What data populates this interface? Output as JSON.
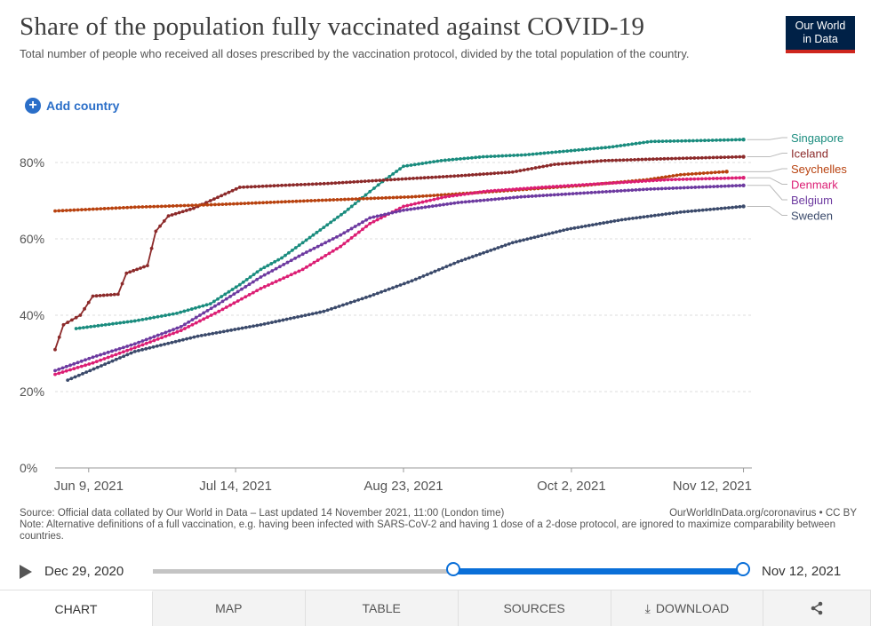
{
  "header": {
    "title": "Share of the population fully vaccinated against COVID-19",
    "subtitle": "Total number of people who received all doses prescribed by the vaccination protocol, divided by the total population of the country.",
    "logo_line1": "Our World",
    "logo_line2": "in Data",
    "add_country": "Add country"
  },
  "footer": {
    "source": "Source: Official data collated by Our World in Data – Last updated 14 November 2021, 11:00 (London time)",
    "source_link": "OurWorldInData.org/coronavirus • CC BY",
    "note": "Note: Alternative definitions of a full vaccination, e.g. having been infected with SARS-CoV-2 and having 1 dose of a 2-dose protocol, are ignored to maximize comparability between countries."
  },
  "timeline": {
    "start_label": "Dec 29, 2020",
    "end_label": "Nov 12, 2021"
  },
  "tabs": [
    "CHART",
    "MAP",
    "TABLE",
    "SOURCES",
    "DOWNLOAD"
  ],
  "colors": {
    "Singapore": "#1a8c7e",
    "Iceland": "#8c2a2a",
    "Seychelles": "#b8420f",
    "Denmark": "#dc1e74",
    "Belgium": "#6d3aa0",
    "Sweden": "#3b4a6b"
  },
  "chart_data": {
    "type": "line",
    "title": "Share of the population fully vaccinated against COVID-19",
    "ylim": [
      0,
      90
    ],
    "yticks": [
      "0%",
      "20%",
      "40%",
      "60%",
      "80%"
    ],
    "ytick_values": [
      0,
      20,
      40,
      60,
      80
    ],
    "xlim": [
      "2021-06-01",
      "2021-11-14"
    ],
    "xticks": [
      "Jun 9, 2021",
      "Jul 14, 2021",
      "Aug 23, 2021",
      "Oct 2, 2021",
      "Nov 12, 2021"
    ],
    "xtick_dates": [
      "2021-06-09",
      "2021-07-14",
      "2021-08-23",
      "2021-10-02",
      "2021-11-12"
    ],
    "grid": "horizontal dashed",
    "legend": "right, labels at line ends",
    "series": [
      {
        "name": "Singapore",
        "points": [
          [
            "2021-06-06",
            36.5
          ],
          [
            "2021-06-20",
            38.5
          ],
          [
            "2021-06-30",
            40.5
          ],
          [
            "2021-07-08",
            43
          ],
          [
            "2021-07-15",
            48
          ],
          [
            "2021-07-20",
            52
          ],
          [
            "2021-07-25",
            55
          ],
          [
            "2021-07-30",
            59
          ],
          [
            "2021-08-04",
            63
          ],
          [
            "2021-08-09",
            67
          ],
          [
            "2021-08-14",
            71.5
          ],
          [
            "2021-08-18",
            75
          ],
          [
            "2021-08-23",
            79
          ],
          [
            "2021-09-01",
            80.5
          ],
          [
            "2021-09-11",
            81.5
          ],
          [
            "2021-09-21",
            82
          ],
          [
            "2021-10-01",
            83
          ],
          [
            "2021-10-11",
            84
          ],
          [
            "2021-10-21",
            85.5
          ],
          [
            "2021-10-31",
            85.7
          ],
          [
            "2021-11-12",
            86
          ]
        ]
      },
      {
        "name": "Iceland",
        "points": [
          [
            "2021-06-01",
            31
          ],
          [
            "2021-06-03",
            37.5
          ],
          [
            "2021-06-07",
            40
          ],
          [
            "2021-06-10",
            45
          ],
          [
            "2021-06-16",
            45.5
          ],
          [
            "2021-06-18",
            51
          ],
          [
            "2021-06-23",
            53
          ],
          [
            "2021-06-25",
            62
          ],
          [
            "2021-06-28",
            66
          ],
          [
            "2021-07-04",
            68
          ],
          [
            "2021-07-08",
            70
          ],
          [
            "2021-07-15",
            73.5
          ],
          [
            "2021-07-25",
            74
          ],
          [
            "2021-08-05",
            74.5
          ],
          [
            "2021-08-20",
            75.5
          ],
          [
            "2021-09-05",
            76.5
          ],
          [
            "2021-09-18",
            77.5
          ],
          [
            "2021-09-28",
            79.5
          ],
          [
            "2021-10-10",
            80.5
          ],
          [
            "2021-10-25",
            81
          ],
          [
            "2021-11-12",
            81.5
          ]
        ]
      },
      {
        "name": "Seychelles",
        "points": [
          [
            "2021-06-01",
            67.3
          ],
          [
            "2021-06-20",
            68.3
          ],
          [
            "2021-07-10",
            69
          ],
          [
            "2021-08-01",
            70
          ],
          [
            "2021-08-25",
            71
          ],
          [
            "2021-09-15",
            72.5
          ],
          [
            "2021-10-05",
            74
          ],
          [
            "2021-10-20",
            75.5
          ],
          [
            "2021-10-28",
            76.8
          ],
          [
            "2021-11-08",
            77.6
          ]
        ]
      },
      {
        "name": "Denmark",
        "points": [
          [
            "2021-06-01",
            24.5
          ],
          [
            "2021-06-10",
            27.5
          ],
          [
            "2021-06-20",
            31.5
          ],
          [
            "2021-07-01",
            36
          ],
          [
            "2021-07-10",
            41
          ],
          [
            "2021-07-20",
            47
          ],
          [
            "2021-07-30",
            52
          ],
          [
            "2021-08-08",
            58
          ],
          [
            "2021-08-15",
            64
          ],
          [
            "2021-08-23",
            68.5
          ],
          [
            "2021-09-02",
            71
          ],
          [
            "2021-09-12",
            72.5
          ],
          [
            "2021-09-25",
            73.5
          ],
          [
            "2021-10-10",
            74.5
          ],
          [
            "2021-10-25",
            75.5
          ],
          [
            "2021-11-12",
            76
          ]
        ]
      },
      {
        "name": "Belgium",
        "points": [
          [
            "2021-06-01",
            25.5
          ],
          [
            "2021-06-10",
            29
          ],
          [
            "2021-06-20",
            32.5
          ],
          [
            "2021-07-01",
            37
          ],
          [
            "2021-07-10",
            43
          ],
          [
            "2021-07-20",
            50
          ],
          [
            "2021-07-30",
            56
          ],
          [
            "2021-08-08",
            61
          ],
          [
            "2021-08-15",
            65.5
          ],
          [
            "2021-08-23",
            67.5
          ],
          [
            "2021-09-05",
            69.5
          ],
          [
            "2021-09-20",
            71
          ],
          [
            "2021-10-05",
            72
          ],
          [
            "2021-10-20",
            73
          ],
          [
            "2021-11-12",
            74
          ]
        ]
      },
      {
        "name": "Sweden",
        "points": [
          [
            "2021-06-04",
            23
          ],
          [
            "2021-06-20",
            30.5
          ],
          [
            "2021-07-05",
            34.5
          ],
          [
            "2021-07-20",
            37.5
          ],
          [
            "2021-08-04",
            41
          ],
          [
            "2021-08-15",
            45
          ],
          [
            "2021-08-25",
            49
          ],
          [
            "2021-09-05",
            54
          ],
          [
            "2021-09-18",
            59
          ],
          [
            "2021-10-01",
            62.5
          ],
          [
            "2021-10-14",
            65
          ],
          [
            "2021-10-28",
            67
          ],
          [
            "2021-11-12",
            68.5
          ]
        ]
      }
    ]
  }
}
